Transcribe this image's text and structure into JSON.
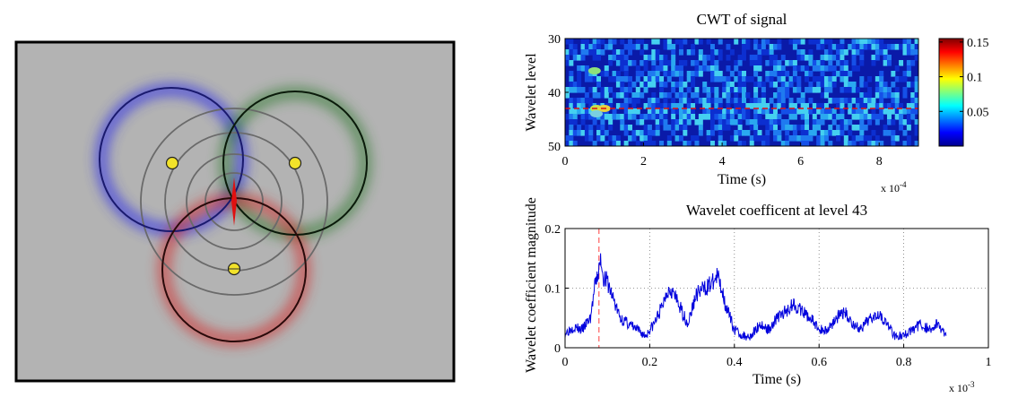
{
  "colors": {
    "panel_bg": "#b3b3b3",
    "circle_blue": "#1a1a6e",
    "circle_green": "#0a1a0a",
    "circle_red": "#2a0a0a",
    "glow_blue": "#3535e6",
    "glow_green": "#2f7a2f",
    "glow_red": "#d23030",
    "sensor_fill": "#f2e22a",
    "source_marker": "#e01010",
    "line_series": "#0000dd",
    "marker_line": "#ff6a6a"
  },
  "chart_data": [
    {
      "type": "illustration",
      "title": "",
      "sensors": [
        "sensor-1",
        "sensor-2",
        "sensor-3"
      ],
      "wavefront_rings": 4
    },
    {
      "type": "heatmap",
      "title": "CWT of signal",
      "xlabel": "Time (s)",
      "ylabel": "Wavelet level",
      "x_exponent": "x 10",
      "x_exponent_power": "-4",
      "xlim": [
        0,
        9
      ],
      "ylim": [
        30,
        50
      ],
      "xticks": [
        "0",
        "2",
        "4",
        "6",
        "8"
      ],
      "yticks": [
        "30",
        "40",
        "50"
      ],
      "highlight_level": 43,
      "colorbar": {
        "range": [
          0,
          0.155
        ],
        "ticks": [
          "0.15",
          "0.1",
          "0.05"
        ]
      }
    },
    {
      "type": "line",
      "title": "Wavelet coefficent at level 43",
      "xlabel": "Time (s)",
      "ylabel": "Wavelet coefficient magnitude",
      "x_exponent": "x 10",
      "x_exponent_power": "-3",
      "xlim": [
        0,
        1
      ],
      "ylim": [
        0,
        0.2
      ],
      "xticks": [
        "0",
        "0.2",
        "0.4",
        "0.6",
        "0.8",
        "1"
      ],
      "yticks": [
        "0",
        "0.1",
        "0.2"
      ],
      "marker_x": 0.08,
      "series": [
        {
          "name": "level 43",
          "x": [
            0.0,
            0.02,
            0.04,
            0.06,
            0.07,
            0.08,
            0.085,
            0.09,
            0.1,
            0.11,
            0.13,
            0.15,
            0.17,
            0.19,
            0.21,
            0.23,
            0.24,
            0.25,
            0.27,
            0.29,
            0.31,
            0.33,
            0.35,
            0.36,
            0.37,
            0.38,
            0.4,
            0.42,
            0.44,
            0.46,
            0.48,
            0.5,
            0.52,
            0.54,
            0.56,
            0.58,
            0.6,
            0.62,
            0.64,
            0.66,
            0.68,
            0.7,
            0.72,
            0.74,
            0.76,
            0.78,
            0.8,
            0.82,
            0.84,
            0.86,
            0.88,
            0.9
          ],
          "values": [
            0.025,
            0.035,
            0.03,
            0.05,
            0.1,
            0.13,
            0.15,
            0.12,
            0.11,
            0.09,
            0.05,
            0.04,
            0.03,
            0.02,
            0.04,
            0.07,
            0.095,
            0.1,
            0.07,
            0.04,
            0.09,
            0.1,
            0.11,
            0.12,
            0.1,
            0.07,
            0.03,
            0.02,
            0.02,
            0.04,
            0.03,
            0.05,
            0.06,
            0.075,
            0.06,
            0.05,
            0.03,
            0.03,
            0.05,
            0.06,
            0.04,
            0.03,
            0.05,
            0.06,
            0.04,
            0.02,
            0.02,
            0.03,
            0.04,
            0.03,
            0.04,
            0.02
          ]
        }
      ]
    }
  ]
}
